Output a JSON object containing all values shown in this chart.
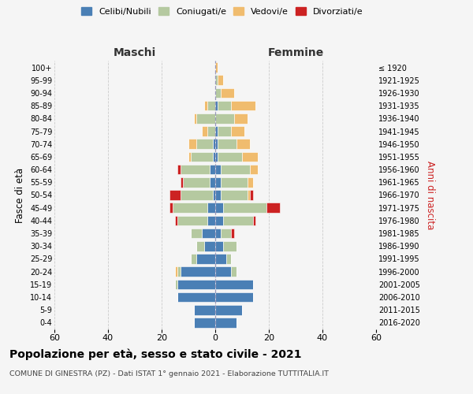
{
  "age_groups": [
    "0-4",
    "5-9",
    "10-14",
    "15-19",
    "20-24",
    "25-29",
    "30-34",
    "35-39",
    "40-44",
    "45-49",
    "50-54",
    "55-59",
    "60-64",
    "65-69",
    "70-74",
    "75-79",
    "80-84",
    "85-89",
    "90-94",
    "95-99",
    "100+"
  ],
  "birth_years": [
    "2016-2020",
    "2011-2015",
    "2006-2010",
    "2001-2005",
    "1996-2000",
    "1991-1995",
    "1986-1990",
    "1981-1985",
    "1976-1980",
    "1971-1975",
    "1966-1970",
    "1961-1965",
    "1956-1960",
    "1951-1955",
    "1946-1950",
    "1941-1945",
    "1936-1940",
    "1931-1935",
    "1926-1930",
    "1921-1925",
    "≤ 1920"
  ],
  "colors": {
    "celibi": "#4a7fb5",
    "coniugati": "#b5c9a0",
    "vedovi": "#f0bc6e",
    "divorziati": "#cc2222"
  },
  "males": {
    "celibi": [
      8,
      8,
      14,
      14,
      13,
      7,
      4,
      5,
      3,
      3,
      1,
      2,
      2,
      1,
      1,
      0,
      0,
      0,
      0,
      0,
      0
    ],
    "coniugati": [
      0,
      0,
      0,
      1,
      1,
      2,
      3,
      4,
      11,
      13,
      12,
      10,
      11,
      8,
      6,
      3,
      7,
      3,
      0,
      0,
      0
    ],
    "vedovi": [
      0,
      0,
      0,
      0,
      1,
      0,
      0,
      0,
      0,
      0,
      0,
      0,
      0,
      1,
      3,
      2,
      1,
      1,
      0,
      0,
      0
    ],
    "divorziati": [
      0,
      0,
      0,
      0,
      0,
      0,
      0,
      0,
      1,
      1,
      4,
      1,
      1,
      0,
      0,
      0,
      0,
      0,
      0,
      0,
      0
    ]
  },
  "females": {
    "celibi": [
      8,
      10,
      14,
      14,
      6,
      4,
      3,
      2,
      3,
      3,
      2,
      2,
      2,
      1,
      1,
      1,
      0,
      1,
      0,
      0,
      0
    ],
    "coniugati": [
      0,
      0,
      0,
      0,
      2,
      2,
      5,
      4,
      11,
      16,
      10,
      10,
      11,
      9,
      7,
      5,
      7,
      5,
      2,
      1,
      0
    ],
    "vedovi": [
      0,
      0,
      0,
      0,
      0,
      0,
      0,
      0,
      0,
      0,
      1,
      2,
      3,
      6,
      5,
      5,
      5,
      9,
      5,
      2,
      1
    ],
    "divorziati": [
      0,
      0,
      0,
      0,
      0,
      0,
      0,
      1,
      1,
      5,
      1,
      0,
      0,
      0,
      0,
      0,
      0,
      0,
      0,
      0,
      0
    ]
  },
  "xlim": 60,
  "title": "Popolazione per età, sesso e stato civile - 2021",
  "subtitle": "COMUNE DI GINESTRA (PZ) - Dati ISTAT 1° gennaio 2021 - Elaborazione TUTTITALIA.IT",
  "ylabel_left": "Fasce di età",
  "ylabel_right": "Anni di nascita",
  "xlabel_left": "Maschi",
  "xlabel_right": "Femmine",
  "bg_color": "#f5f5f5",
  "grid_color": "#cccccc"
}
